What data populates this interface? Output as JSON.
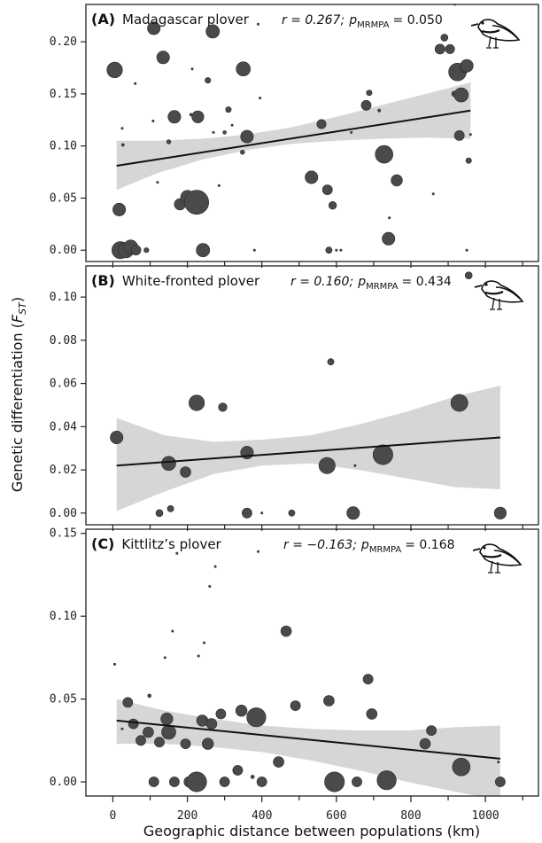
{
  "figure": {
    "ylabel_main": "Genetic differentiation (",
    "ylabel_sym": "F",
    "ylabel_sub": "ST",
    "ylabel_close": ")",
    "xlabel": "Geographic distance between populations (km)"
  },
  "chart_data": [
    {
      "type": "scatter",
      "letter": "(A)",
      "title": "Madagascar plover",
      "stat": {
        "r": "r = 0.267;",
        "p_sym": "p",
        "p_sub": "MRMPA",
        "p_val": "= 0.050"
      },
      "xlim": [
        -70,
        1140
      ],
      "ylim": [
        -0.01,
        0.235
      ],
      "xticks": [
        0,
        200,
        400,
        600,
        800,
        1000
      ],
      "yticks": [
        0.0,
        0.05,
        0.1,
        0.15,
        0.2
      ],
      "ytick_labels": [
        "0.00",
        "0.05",
        "0.10",
        "0.15",
        "0.20"
      ],
      "fit": {
        "x": [
          10,
          960
        ],
        "y": [
          0.081,
          0.134
        ]
      },
      "band": {
        "x": [
          10,
          120,
          240,
          360,
          480,
          600,
          720,
          840,
          960
        ],
        "lower": [
          0.058,
          0.074,
          0.087,
          0.096,
          0.102,
          0.105,
          0.107,
          0.108,
          0.107
        ],
        "upper": [
          0.105,
          0.105,
          0.107,
          0.111,
          0.118,
          0.128,
          0.139,
          0.15,
          0.161
        ]
      },
      "points": [
        {
          "x": 20,
          "y": 0.0,
          "s": 2.4
        },
        {
          "x": 35,
          "y": 0.0,
          "s": 2.2
        },
        {
          "x": 48,
          "y": 0.003,
          "s": 2.0
        },
        {
          "x": 62,
          "y": 0.0,
          "s": 1.4
        },
        {
          "x": 17,
          "y": 0.039,
          "s": 1.8
        },
        {
          "x": 5,
          "y": 0.173,
          "s": 2.2
        },
        {
          "x": 25,
          "y": 0.117,
          "s": 0.3
        },
        {
          "x": 27,
          "y": 0.101,
          "s": 0.4
        },
        {
          "x": 90,
          "y": 0.0,
          "s": 0.7
        },
        {
          "x": 110,
          "y": 0.213,
          "s": 1.8
        },
        {
          "x": 108,
          "y": 0.124,
          "s": 0.3
        },
        {
          "x": 120,
          "y": 0.065,
          "s": 0.3
        },
        {
          "x": 135,
          "y": 0.185,
          "s": 1.8
        },
        {
          "x": 150,
          "y": 0.104,
          "s": 0.6
        },
        {
          "x": 165,
          "y": 0.128,
          "s": 1.8
        },
        {
          "x": 180,
          "y": 0.044,
          "s": 1.6
        },
        {
          "x": 200,
          "y": 0.051,
          "s": 1.9
        },
        {
          "x": 210,
          "y": 0.13,
          "s": 0.4
        },
        {
          "x": 225,
          "y": 0.046,
          "s": 3.4
        },
        {
          "x": 228,
          "y": 0.128,
          "s": 1.7
        },
        {
          "x": 242,
          "y": 0.0,
          "s": 1.9
        },
        {
          "x": 255,
          "y": 0.163,
          "s": 0.8
        },
        {
          "x": 268,
          "y": 0.21,
          "s": 1.9
        },
        {
          "x": 270,
          "y": 0.113,
          "s": 0.3
        },
        {
          "x": 285,
          "y": 0.062,
          "s": 0.3
        },
        {
          "x": 300,
          "y": 0.113,
          "s": 0.5
        },
        {
          "x": 310,
          "y": 0.135,
          "s": 0.8
        },
        {
          "x": 320,
          "y": 0.12,
          "s": 0.3
        },
        {
          "x": 350,
          "y": 0.174,
          "s": 2.0
        },
        {
          "x": 360,
          "y": 0.109,
          "s": 1.8
        },
        {
          "x": 348,
          "y": 0.094,
          "s": 0.6
        },
        {
          "x": 380,
          "y": 0.0,
          "s": 0.3
        },
        {
          "x": 395,
          "y": 0.146,
          "s": 0.3
        },
        {
          "x": 213,
          "y": 0.174,
          "s": 0.3
        },
        {
          "x": 60,
          "y": 0.16,
          "s": 0.3
        },
        {
          "x": 390,
          "y": 0.217,
          "s": 0.3
        },
        {
          "x": 533,
          "y": 0.07,
          "s": 1.8
        },
        {
          "x": 560,
          "y": 0.121,
          "s": 1.3
        },
        {
          "x": 576,
          "y": 0.058,
          "s": 1.4
        },
        {
          "x": 580,
          "y": 0.0,
          "s": 0.9
        },
        {
          "x": 590,
          "y": 0.043,
          "s": 1.1
        },
        {
          "x": 600,
          "y": 0.0,
          "s": 0.3
        },
        {
          "x": 612,
          "y": 0.0,
          "s": 0.3
        },
        {
          "x": 640,
          "y": 0.113,
          "s": 0.3
        },
        {
          "x": 680,
          "y": 0.139,
          "s": 1.4
        },
        {
          "x": 688,
          "y": 0.151,
          "s": 0.8
        },
        {
          "x": 715,
          "y": 0.134,
          "s": 0.4
        },
        {
          "x": 728,
          "y": 0.092,
          "s": 2.5
        },
        {
          "x": 740,
          "y": 0.011,
          "s": 1.8
        },
        {
          "x": 742,
          "y": 0.031,
          "s": 0.3
        },
        {
          "x": 762,
          "y": 0.067,
          "s": 1.6
        },
        {
          "x": 860,
          "y": 0.054,
          "s": 0.3
        },
        {
          "x": 878,
          "y": 0.193,
          "s": 1.4
        },
        {
          "x": 890,
          "y": 0.204,
          "s": 1.0
        },
        {
          "x": 905,
          "y": 0.193,
          "s": 1.3
        },
        {
          "x": 917,
          "y": 0.15,
          "s": 0.8
        },
        {
          "x": 918,
          "y": 0.236,
          "s": 0.3
        },
        {
          "x": 925,
          "y": 0.171,
          "s": 2.5
        },
        {
          "x": 930,
          "y": 0.11,
          "s": 1.4
        },
        {
          "x": 935,
          "y": 0.149,
          "s": 2.0
        },
        {
          "x": 945,
          "y": 0.175,
          "s": 1.4
        },
        {
          "x": 950,
          "y": 0.177,
          "s": 1.8
        },
        {
          "x": 955,
          "y": 0.086,
          "s": 0.8
        },
        {
          "x": 960,
          "y": 0.111,
          "s": 0.3
        },
        {
          "x": 950,
          "y": 0.0,
          "s": 0.3
        }
      ]
    },
    {
      "type": "scatter",
      "letter": "(B)",
      "title": "White-fronted plover",
      "stat": {
        "r": "r = 0.160;",
        "p_sym": "p",
        "p_sub": "MRMPA",
        "p_val": "= 0.434"
      },
      "xlim": [
        -70,
        1140
      ],
      "ylim": [
        -0.005,
        0.114
      ],
      "xticks": [
        0,
        200,
        400,
        600,
        800,
        1000
      ],
      "yticks": [
        0.0,
        0.02,
        0.04,
        0.06,
        0.08,
        0.1
      ],
      "ytick_labels": [
        "0.00",
        "0.02",
        "0.04",
        "0.06",
        "0.08",
        "0.10"
      ],
      "fit": {
        "x": [
          10,
          1040
        ],
        "y": [
          0.022,
          0.035
        ]
      },
      "band": {
        "x": [
          10,
          140,
          270,
          400,
          530,
          660,
          790,
          920,
          1040
        ],
        "lower": [
          0.001,
          0.01,
          0.018,
          0.022,
          0.023,
          0.02,
          0.016,
          0.012,
          0.011
        ],
        "upper": [
          0.044,
          0.036,
          0.033,
          0.034,
          0.036,
          0.041,
          0.047,
          0.054,
          0.059
        ]
      },
      "points": [
        {
          "x": 10,
          "y": 0.035,
          "s": 1.8
        },
        {
          "x": 125,
          "y": 0.0,
          "s": 1.0
        },
        {
          "x": 150,
          "y": 0.023,
          "s": 2.0
        },
        {
          "x": 155,
          "y": 0.002,
          "s": 0.9
        },
        {
          "x": 195,
          "y": 0.019,
          "s": 1.5
        },
        {
          "x": 225,
          "y": 0.051,
          "s": 2.2
        },
        {
          "x": 295,
          "y": 0.049,
          "s": 1.2
        },
        {
          "x": 360,
          "y": 0.028,
          "s": 1.8
        },
        {
          "x": 360,
          "y": 0.0,
          "s": 1.4
        },
        {
          "x": 400,
          "y": 0.0,
          "s": 0.3
        },
        {
          "x": 480,
          "y": 0.0,
          "s": 0.9
        },
        {
          "x": 575,
          "y": 0.022,
          "s": 2.3
        },
        {
          "x": 585,
          "y": 0.07,
          "s": 0.9
        },
        {
          "x": 645,
          "y": 0.0,
          "s": 1.8
        },
        {
          "x": 650,
          "y": 0.022,
          "s": 0.3
        },
        {
          "x": 725,
          "y": 0.027,
          "s": 2.8
        },
        {
          "x": 930,
          "y": 0.051,
          "s": 2.4
        },
        {
          "x": 955,
          "y": 0.11,
          "s": 1.0
        },
        {
          "x": 1040,
          "y": 0.0,
          "s": 1.7
        }
      ]
    },
    {
      "type": "scatter",
      "letter": "(C)",
      "title": "Kittlitz’s plover",
      "stat": {
        "r": "r = −0.163;",
        "p_sym": "p",
        "p_sub": "MRMPA",
        "p_val": "= 0.168"
      },
      "xlim": [
        -70,
        1140
      ],
      "ylim": [
        -0.008,
        0.152
      ],
      "xticks": [
        0,
        200,
        400,
        600,
        800,
        1000
      ],
      "xtick_labels": [
        "0",
        "200",
        "400",
        "600",
        "800",
        "1000"
      ],
      "yticks": [
        0.0,
        0.05,
        0.1,
        0.15
      ],
      "ytick_labels": [
        "0.00",
        "0.05",
        "0.10",
        "0.15"
      ],
      "fit": {
        "x": [
          10,
          1040
        ],
        "y": [
          0.037,
          0.014
        ]
      },
      "band": {
        "x": [
          10,
          140,
          270,
          400,
          530,
          660,
          790,
          920,
          1040
        ],
        "lower": [
          0.023,
          0.023,
          0.021,
          0.018,
          0.013,
          0.007,
          0.0,
          -0.006,
          -0.011
        ],
        "upper": [
          0.05,
          0.043,
          0.038,
          0.034,
          0.032,
          0.031,
          0.031,
          0.033,
          0.034
        ]
      },
      "points": [
        {
          "x": 5,
          "y": 0.071,
          "s": 0.3
        },
        {
          "x": 25,
          "y": 0.032,
          "s": 0.3
        },
        {
          "x": 40,
          "y": 0.048,
          "s": 1.4
        },
        {
          "x": 55,
          "y": 0.035,
          "s": 1.4
        },
        {
          "x": 75,
          "y": 0.025,
          "s": 1.4
        },
        {
          "x": 95,
          "y": 0.03,
          "s": 1.5
        },
        {
          "x": 98,
          "y": 0.052,
          "s": 0.5
        },
        {
          "x": 110,
          "y": 0.0,
          "s": 1.4
        },
        {
          "x": 125,
          "y": 0.024,
          "s": 1.4
        },
        {
          "x": 140,
          "y": 0.075,
          "s": 0.3
        },
        {
          "x": 145,
          "y": 0.038,
          "s": 1.7
        },
        {
          "x": 150,
          "y": 0.03,
          "s": 2.0
        },
        {
          "x": 160,
          "y": 0.091,
          "s": 0.3
        },
        {
          "x": 165,
          "y": 0.0,
          "s": 1.4
        },
        {
          "x": 172,
          "y": 0.138,
          "s": 0.3
        },
        {
          "x": 195,
          "y": 0.023,
          "s": 1.4
        },
        {
          "x": 205,
          "y": 0.0,
          "s": 1.5
        },
        {
          "x": 225,
          "y": 0.0,
          "s": 2.8
        },
        {
          "x": 230,
          "y": 0.076,
          "s": 0.3
        },
        {
          "x": 240,
          "y": 0.037,
          "s": 1.6
        },
        {
          "x": 245,
          "y": 0.084,
          "s": 0.3
        },
        {
          "x": 255,
          "y": 0.023,
          "s": 1.6
        },
        {
          "x": 260,
          "y": 0.118,
          "s": 0.3
        },
        {
          "x": 265,
          "y": 0.035,
          "s": 1.5
        },
        {
          "x": 275,
          "y": 0.13,
          "s": 0.3
        },
        {
          "x": 290,
          "y": 0.041,
          "s": 1.4
        },
        {
          "x": 300,
          "y": 0.0,
          "s": 1.4
        },
        {
          "x": 335,
          "y": 0.007,
          "s": 1.4
        },
        {
          "x": 345,
          "y": 0.043,
          "s": 1.6
        },
        {
          "x": 375,
          "y": 0.003,
          "s": 0.5
        },
        {
          "x": 385,
          "y": 0.039,
          "s": 2.7
        },
        {
          "x": 390,
          "y": 0.139,
          "s": 0.3
        },
        {
          "x": 400,
          "y": 0.0,
          "s": 1.4
        },
        {
          "x": 445,
          "y": 0.012,
          "s": 1.5
        },
        {
          "x": 465,
          "y": 0.091,
          "s": 1.5
        },
        {
          "x": 490,
          "y": 0.046,
          "s": 1.4
        },
        {
          "x": 580,
          "y": 0.049,
          "s": 1.5
        },
        {
          "x": 595,
          "y": 0.0,
          "s": 2.8
        },
        {
          "x": 655,
          "y": 0.0,
          "s": 1.4
        },
        {
          "x": 685,
          "y": 0.062,
          "s": 1.4
        },
        {
          "x": 695,
          "y": 0.041,
          "s": 1.5
        },
        {
          "x": 735,
          "y": 0.001,
          "s": 2.7
        },
        {
          "x": 838,
          "y": 0.023,
          "s": 1.5
        },
        {
          "x": 855,
          "y": 0.031,
          "s": 1.4
        },
        {
          "x": 935,
          "y": 0.009,
          "s": 2.5
        },
        {
          "x": 1040,
          "y": 0.0,
          "s": 1.4
        },
        {
          "x": 1035,
          "y": 0.012,
          "s": 0.3
        }
      ]
    }
  ],
  "colors": {
    "point": "#4a4a4a",
    "point_stroke": "#2a2a2a",
    "band": "#d6d6d6",
    "line": "#111111",
    "axis": "#222222"
  }
}
